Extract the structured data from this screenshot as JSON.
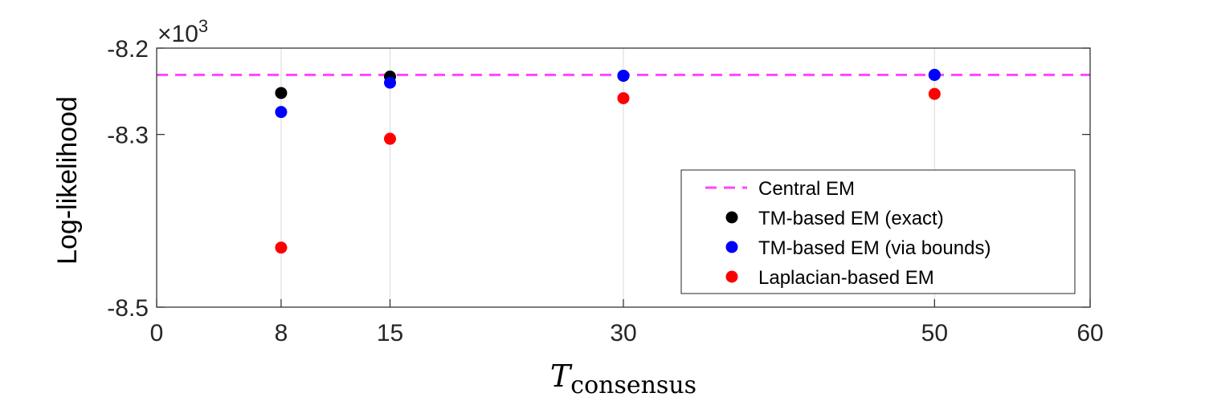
{
  "chart_data": {
    "type": "scatter",
    "xlabel": {
      "main": "T",
      "subscript": "consensus"
    },
    "ylabel": "Log-likelihood",
    "y_exponent": {
      "prefix": "×10",
      "power": "3"
    },
    "xlim": [
      0,
      60
    ],
    "ylim": [
      -8.5,
      -8.2
    ],
    "xticks": [
      0,
      8,
      15,
      30,
      50,
      60
    ],
    "yticks": [
      -8.2,
      -8.3,
      -8.5
    ],
    "ytick_labels": [
      "-8.2",
      "-8.3",
      "-8.5"
    ],
    "grid_x": true,
    "grid_y": false,
    "legend_position": "bottom-right",
    "reference_line": {
      "name": "Central EM",
      "y": -8.231,
      "color": "#ff44ff",
      "style": "dashed"
    },
    "series": [
      {
        "name": "TM-based EM (exact)",
        "color": "#000000",
        "points": [
          [
            8,
            -8.252
          ],
          [
            15,
            -8.233
          ],
          [
            30,
            -8.232
          ],
          [
            50,
            -8.231
          ]
        ]
      },
      {
        "name": "TM-based EM (via bounds)",
        "color": "#0000ff",
        "points": [
          [
            8,
            -8.274
          ],
          [
            15,
            -8.24
          ],
          [
            30,
            -8.232
          ],
          [
            50,
            -8.231
          ]
        ]
      },
      {
        "name": "Laplacian-based EM",
        "color": "#ff0000",
        "points": [
          [
            8,
            -8.431
          ],
          [
            15,
            -8.305
          ],
          [
            30,
            -8.258
          ],
          [
            50,
            -8.253
          ]
        ]
      }
    ]
  }
}
